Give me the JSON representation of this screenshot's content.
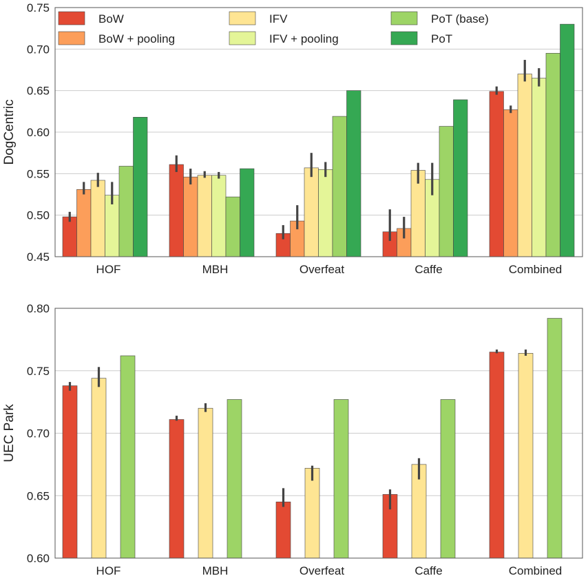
{
  "colors": {
    "BoW": "#e34a33",
    "BoW + pooling": "#fc9e5a",
    "IFV": "#fee593",
    "IFV + pooling": "#e4f598",
    "PoT (base)": "#9dd466",
    "PoT": "#35a853"
  },
  "legend": {
    "entries": [
      "BoW",
      "BoW + pooling",
      "IFV",
      "IFV + pooling",
      "PoT (base)",
      "PoT"
    ]
  },
  "chart_data": [
    {
      "type": "bar",
      "title": "",
      "xlabel": "",
      "ylabel": "DogCentric",
      "ylim": [
        0.45,
        0.75
      ],
      "yticks": [
        "0.45",
        "0.50",
        "0.55",
        "0.60",
        "0.65",
        "0.70",
        "0.75"
      ],
      "categories": [
        "HOF",
        "MBH",
        "Overfeat",
        "Caffe",
        "Combined"
      ],
      "legend": "top, 3 columns",
      "series": [
        {
          "name": "BoW",
          "values": [
            0.498,
            0.561,
            0.478,
            0.48,
            0.649
          ],
          "err_low": [
            0.492,
            0.552,
            0.471,
            0.469,
            0.645
          ],
          "err_high": [
            0.504,
            0.572,
            0.488,
            0.507,
            0.655
          ]
        },
        {
          "name": "BoW + pooling",
          "values": [
            0.531,
            0.546,
            0.493,
            0.484,
            0.627
          ],
          "err_low": [
            0.525,
            0.537,
            0.483,
            0.472,
            0.623
          ],
          "err_high": [
            0.54,
            0.556,
            0.512,
            0.498,
            0.632
          ]
        },
        {
          "name": "IFV",
          "values": [
            0.542,
            0.548,
            0.557,
            0.554,
            0.67
          ],
          "err_low": [
            0.534,
            0.545,
            0.546,
            0.538,
            0.661
          ],
          "err_high": [
            0.551,
            0.553,
            0.575,
            0.563,
            0.687
          ]
        },
        {
          "name": "IFV + pooling",
          "values": [
            0.524,
            0.548,
            0.555,
            0.543,
            0.665
          ],
          "err_low": [
            0.513,
            0.544,
            0.546,
            0.524,
            0.655
          ],
          "err_high": [
            0.54,
            0.552,
            0.564,
            0.563,
            0.677
          ]
        },
        {
          "name": "PoT (base)",
          "values": [
            0.559,
            0.522,
            0.619,
            0.607,
            0.695
          ]
        },
        {
          "name": "PoT",
          "values": [
            0.618,
            0.556,
            0.65,
            0.639,
            0.73
          ]
        }
      ]
    },
    {
      "type": "bar",
      "title": "",
      "xlabel": "",
      "ylabel": "UEC Park",
      "ylim": [
        0.6,
        0.8
      ],
      "yticks": [
        "0.60",
        "0.65",
        "0.70",
        "0.75",
        "0.80"
      ],
      "categories": [
        "HOF",
        "MBH",
        "Overfeat",
        "Caffe",
        "Combined"
      ],
      "series": [
        {
          "name": "BoW",
          "values": [
            0.738,
            0.711,
            0.645,
            0.651,
            0.765
          ],
          "err_low": [
            0.734,
            0.71,
            0.641,
            0.639,
            0.764
          ],
          "err_high": [
            0.741,
            0.714,
            0.656,
            0.655,
            0.767
          ]
        },
        {
          "name": "IFV",
          "values": [
            0.744,
            0.72,
            0.672,
            0.675,
            0.764
          ],
          "err_low": [
            0.737,
            0.717,
            0.662,
            0.663,
            0.762
          ],
          "err_high": [
            0.753,
            0.724,
            0.674,
            0.68,
            0.767
          ]
        },
        {
          "name": "PoT (base)",
          "values": [
            0.762,
            0.727,
            0.727,
            0.727,
            0.792
          ]
        }
      ]
    }
  ]
}
